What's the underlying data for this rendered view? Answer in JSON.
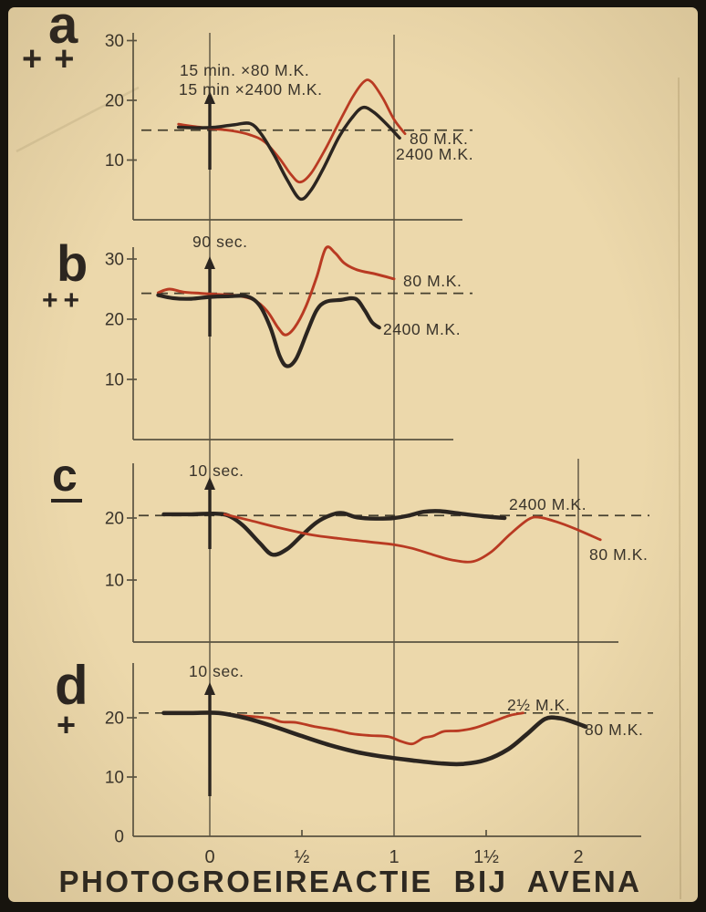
{
  "poster": {
    "title": "PHOTOGROEIREACTIE BIJ AVENA"
  },
  "colors": {
    "paper": "#ecd8ab",
    "paper_edge": "#dfc697",
    "frame": "#17140e",
    "curve_black": "#2b2520",
    "curve_red": "#b93a22",
    "axis": "#5a5341",
    "dash": "#46402f",
    "text": "#3a342b",
    "title": "#2b2721"
  },
  "x_axis": {
    "tick_labels": [
      "0",
      "½",
      "1",
      "1½",
      "2"
    ],
    "tick_values": [
      0,
      0.5,
      1,
      1.5,
      2
    ]
  },
  "chart_data": [
    {
      "id": "a",
      "type": "line",
      "panel_label": "a",
      "sign": "++",
      "stimulus_annotation": [
        "15 min. ×80 M.K.",
        "15 min ×2400 M.K."
      ],
      "baseline_value": 15,
      "y_ticks": [
        30,
        20,
        10
      ],
      "x_range": [
        -0.2,
        1.1
      ],
      "series": [
        {
          "name": "80 M.K.",
          "color_key": "red",
          "points": [
            [
              -0.17,
              16.0
            ],
            [
              -0.08,
              15.6
            ],
            [
              0,
              15.3
            ],
            [
              0.12,
              14.9
            ],
            [
              0.22,
              14.2
            ],
            [
              0.3,
              13.0
            ],
            [
              0.38,
              10.2
            ],
            [
              0.44,
              7.6
            ],
            [
              0.49,
              6.3
            ],
            [
              0.55,
              7.8
            ],
            [
              0.63,
              12.0
            ],
            [
              0.7,
              16.2
            ],
            [
              0.78,
              20.8
            ],
            [
              0.84,
              23.2
            ],
            [
              0.88,
              23.0
            ],
            [
              0.94,
              20.3
            ],
            [
              1.0,
              16.8
            ],
            [
              1.06,
              14.4
            ]
          ]
        },
        {
          "name": "2400 M.K.",
          "color_key": "black",
          "points": [
            [
              -0.17,
              15.5
            ],
            [
              -0.07,
              15.4
            ],
            [
              0.03,
              15.5
            ],
            [
              0.13,
              15.9
            ],
            [
              0.22,
              16.1
            ],
            [
              0.28,
              14.3
            ],
            [
              0.35,
              10.8
            ],
            [
              0.42,
              6.7
            ],
            [
              0.49,
              3.5
            ],
            [
              0.55,
              5.0
            ],
            [
              0.62,
              8.8
            ],
            [
              0.7,
              13.8
            ],
            [
              0.77,
              17.0
            ],
            [
              0.83,
              18.8
            ],
            [
              0.89,
              18.0
            ],
            [
              0.96,
              16.0
            ],
            [
              1.03,
              13.7
            ]
          ]
        }
      ]
    },
    {
      "id": "b",
      "type": "line",
      "panel_label": "b",
      "sign": "++",
      "stimulus_annotation": [
        "90 sec."
      ],
      "baseline_value": 24.3,
      "y_ticks": [
        30,
        20,
        10
      ],
      "x_range": [
        -0.3,
        1.05
      ],
      "series": [
        {
          "name": "80 M.K.",
          "color_key": "red",
          "points": [
            [
              -0.28,
              24.4
            ],
            [
              -0.22,
              25.0
            ],
            [
              -0.14,
              24.5
            ],
            [
              -0.05,
              24.3
            ],
            [
              0.05,
              24.1
            ],
            [
              0.15,
              23.9
            ],
            [
              0.24,
              23.2
            ],
            [
              0.31,
              21.4
            ],
            [
              0.37,
              18.6
            ],
            [
              0.41,
              17.4
            ],
            [
              0.46,
              18.6
            ],
            [
              0.52,
              22.0
            ],
            [
              0.58,
              27.0
            ],
            [
              0.63,
              31.8
            ],
            [
              0.68,
              31.0
            ],
            [
              0.73,
              29.3
            ],
            [
              0.8,
              28.2
            ],
            [
              0.9,
              27.5
            ],
            [
              1.0,
              26.7
            ]
          ]
        },
        {
          "name": "2400 M.K.",
          "color_key": "black",
          "points": [
            [
              -0.28,
              24.0
            ],
            [
              -0.2,
              23.5
            ],
            [
              -0.1,
              23.4
            ],
            [
              0,
              23.7
            ],
            [
              0.1,
              23.8
            ],
            [
              0.2,
              23.8
            ],
            [
              0.27,
              22.3
            ],
            [
              0.33,
              18.5
            ],
            [
              0.38,
              13.8
            ],
            [
              0.42,
              12.2
            ],
            [
              0.47,
              13.5
            ],
            [
              0.53,
              18.0
            ],
            [
              0.58,
              21.5
            ],
            [
              0.63,
              22.9
            ],
            [
              0.71,
              23.2
            ],
            [
              0.79,
              23.4
            ],
            [
              0.84,
              21.5
            ],
            [
              0.88,
              19.5
            ],
            [
              0.92,
              18.6
            ]
          ]
        }
      ]
    },
    {
      "id": "c",
      "type": "line",
      "panel_label": "c",
      "sign": "−",
      "stimulus_annotation": [
        "10 sec."
      ],
      "baseline_value": 20.4,
      "y_ticks": [
        20,
        10
      ],
      "x_range": [
        -0.25,
        2.15
      ],
      "series": [
        {
          "name": "2400 M.K.",
          "color_key": "black",
          "points": [
            [
              -0.25,
              20.6
            ],
            [
              -0.1,
              20.6
            ],
            [
              0.02,
              20.7
            ],
            [
              0.1,
              20.4
            ],
            [
              0.18,
              18.8
            ],
            [
              0.27,
              16.0
            ],
            [
              0.34,
              14.1
            ],
            [
              0.42,
              15.0
            ],
            [
              0.5,
              17.2
            ],
            [
              0.58,
              19.3
            ],
            [
              0.66,
              20.5
            ],
            [
              0.72,
              20.8
            ],
            [
              0.8,
              20.1
            ],
            [
              0.9,
              19.9
            ],
            [
              1.0,
              20.0
            ],
            [
              1.08,
              20.4
            ],
            [
              1.16,
              21.0
            ],
            [
              1.25,
              21.1
            ],
            [
              1.36,
              20.7
            ],
            [
              1.48,
              20.3
            ],
            [
              1.6,
              20.0
            ]
          ]
        },
        {
          "name": "80 M.K.",
          "color_key": "red",
          "points": [
            [
              0.08,
              20.6
            ],
            [
              0.22,
              19.6
            ],
            [
              0.38,
              18.4
            ],
            [
              0.55,
              17.3
            ],
            [
              0.7,
              16.7
            ],
            [
              0.85,
              16.2
            ],
            [
              1.0,
              15.7
            ],
            [
              1.1,
              15.1
            ],
            [
              1.22,
              14.0
            ],
            [
              1.32,
              13.2
            ],
            [
              1.43,
              13.0
            ],
            [
              1.53,
              14.6
            ],
            [
              1.63,
              17.4
            ],
            [
              1.73,
              19.8
            ],
            [
              1.79,
              20.1
            ],
            [
              1.88,
              19.4
            ],
            [
              1.98,
              18.3
            ],
            [
              2.12,
              16.5
            ]
          ]
        }
      ]
    },
    {
      "id": "d",
      "type": "line",
      "panel_label": "d",
      "sign": "+",
      "stimulus_annotation": [
        "10 sec."
      ],
      "baseline_value": 20.8,
      "y_ticks": [
        20,
        10,
        0
      ],
      "x_range": [
        -0.25,
        2.05
      ],
      "series": [
        {
          "name": "2½ M.K.",
          "color_key": "red",
          "points": [
            [
              0.05,
              20.8
            ],
            [
              0.16,
              20.4
            ],
            [
              0.27,
              20.1
            ],
            [
              0.33,
              19.9
            ],
            [
              0.39,
              19.3
            ],
            [
              0.47,
              19.2
            ],
            [
              0.57,
              18.5
            ],
            [
              0.67,
              18.0
            ],
            [
              0.77,
              17.3
            ],
            [
              0.87,
              17.0
            ],
            [
              0.97,
              16.8
            ],
            [
              1.04,
              16.0
            ],
            [
              1.1,
              15.6
            ],
            [
              1.16,
              16.6
            ],
            [
              1.21,
              16.9
            ],
            [
              1.27,
              17.7
            ],
            [
              1.35,
              17.8
            ],
            [
              1.44,
              18.3
            ],
            [
              1.54,
              19.4
            ],
            [
              1.63,
              20.4
            ],
            [
              1.7,
              20.8
            ]
          ]
        },
        {
          "name": "80 M.K.",
          "color_key": "black",
          "points": [
            [
              -0.25,
              20.8
            ],
            [
              -0.1,
              20.8
            ],
            [
              0.05,
              20.8
            ],
            [
              0.2,
              19.9
            ],
            [
              0.35,
              18.5
            ],
            [
              0.5,
              16.9
            ],
            [
              0.65,
              15.4
            ],
            [
              0.8,
              14.2
            ],
            [
              0.95,
              13.4
            ],
            [
              1.1,
              12.8
            ],
            [
              1.25,
              12.3
            ],
            [
              1.37,
              12.2
            ],
            [
              1.5,
              12.9
            ],
            [
              1.62,
              14.7
            ],
            [
              1.72,
              17.2
            ],
            [
              1.82,
              19.8
            ],
            [
              1.9,
              19.9
            ],
            [
              1.97,
              19.3
            ],
            [
              2.04,
              18.5
            ]
          ]
        }
      ]
    }
  ]
}
